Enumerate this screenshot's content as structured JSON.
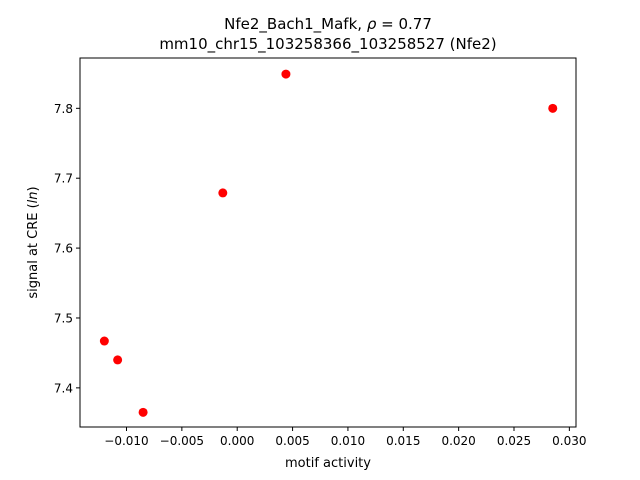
{
  "chart_data": {
    "type": "scatter",
    "title_main": "Nfe2_Bach1_Mafk, ",
    "title_rho_symbol": "ρ",
    "title_rho_value": " = 0.77",
    "title_line2": "mm10_chr15_103258366_103258527 (Nfe2)",
    "xlabel": "motif activity",
    "ylabel_prefix": "signal at CRE (",
    "ylabel_italic": "ln",
    "ylabel_suffix": ")",
    "xlim": [
      -0.0142,
      0.0306
    ],
    "ylim": [
      7.344,
      7.872
    ],
    "xticks": [
      -0.01,
      -0.005,
      0.0,
      0.005,
      0.01,
      0.015,
      0.02,
      0.025,
      0.03
    ],
    "xtick_labels": [
      "−0.010",
      "−0.005",
      "0.000",
      "0.005",
      "0.010",
      "0.015",
      "0.020",
      "0.025",
      "0.030"
    ],
    "yticks": [
      7.4,
      7.5,
      7.6,
      7.7,
      7.8
    ],
    "ytick_labels": [
      "7.4",
      "7.5",
      "7.6",
      "7.7",
      "7.8"
    ],
    "grid": false,
    "marker_color": "#ff0000",
    "points": [
      {
        "x": -0.012,
        "y": 7.467
      },
      {
        "x": -0.0108,
        "y": 7.44
      },
      {
        "x": -0.0085,
        "y": 7.365
      },
      {
        "x": -0.0013,
        "y": 7.679
      },
      {
        "x": 0.0044,
        "y": 7.849
      },
      {
        "x": 0.0285,
        "y": 7.8
      }
    ]
  }
}
